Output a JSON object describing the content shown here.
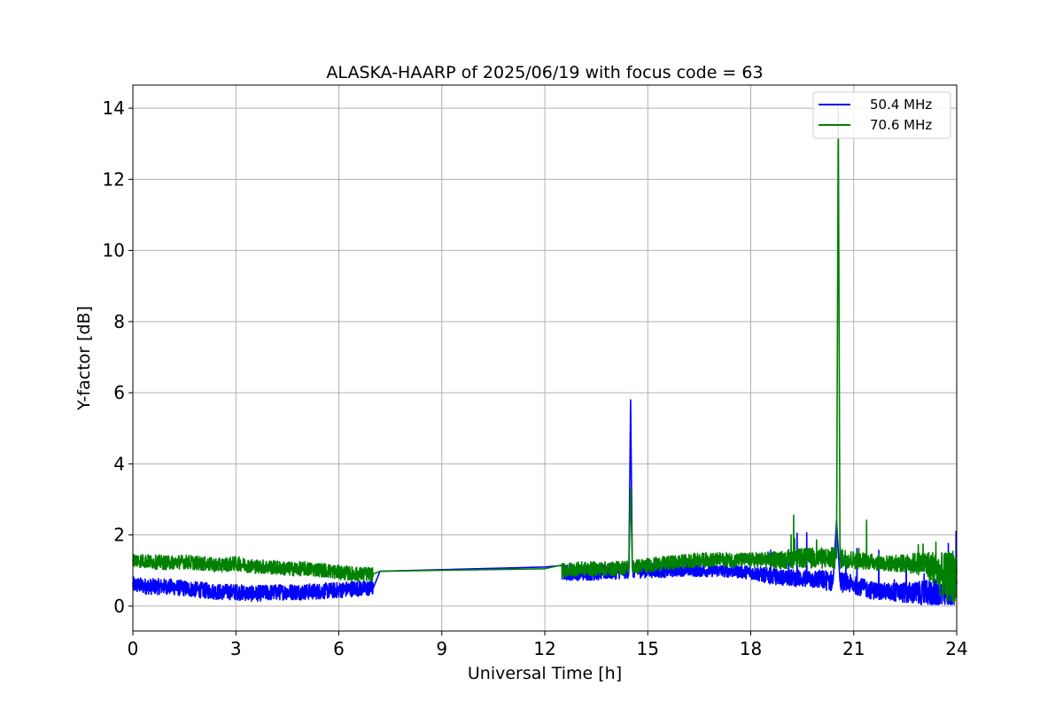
{
  "chart_data": {
    "type": "line",
    "title": "ALASKA-HAARP of 2025/06/19 with focus code = 63",
    "xlabel": "Universal Time [h]",
    "ylabel": "Y-factor [dB]",
    "xlim": [
      0,
      24
    ],
    "ylim": [
      -0.7,
      14.65
    ],
    "xticks": [
      0,
      3,
      6,
      9,
      12,
      15,
      18,
      21,
      24
    ],
    "yticks": [
      0,
      2,
      4,
      6,
      8,
      10,
      12,
      14
    ],
    "grid": true,
    "legend_position": "top-right",
    "series": [
      {
        "name": "50.4 MHz",
        "color": "#0000ff",
        "x": [
          0,
          0.5,
          1,
          1.5,
          2,
          2.5,
          3,
          3.5,
          4,
          4.5,
          5,
          5.5,
          6,
          6.5,
          7,
          7.2,
          12,
          12.5,
          13,
          13.5,
          14,
          14.45,
          14.5,
          14.55,
          15,
          15.5,
          16,
          16.5,
          17,
          17.5,
          18,
          18.5,
          19,
          19.5,
          20,
          20.4,
          20.5,
          20.6,
          21,
          21.5,
          22,
          22.5,
          23,
          23.3,
          23.5,
          23.7,
          24
        ],
        "y": [
          0.6,
          0.55,
          0.55,
          0.5,
          0.45,
          0.4,
          0.4,
          0.35,
          0.38,
          0.4,
          0.4,
          0.42,
          0.45,
          0.5,
          0.5,
          0.98,
          1.1,
          0.95,
          0.95,
          0.95,
          0.98,
          1.0,
          5.8,
          1.0,
          1.0,
          1.0,
          1.02,
          1.0,
          1.0,
          0.98,
          0.95,
          0.85,
          0.8,
          0.78,
          0.75,
          0.7,
          2.4,
          0.7,
          0.6,
          0.45,
          0.4,
          0.38,
          0.35,
          0.35,
          0.3,
          0.5,
          0.6
        ],
        "noise": [
          0.45,
          0.45,
          0.45,
          0.45,
          0.45,
          0.45,
          0.45,
          0.45,
          0.45,
          0.45,
          0.45,
          0.45,
          0.45,
          0.45,
          0.45,
          0,
          0,
          0.45,
          0.45,
          0.45,
          0.45,
          0.45,
          0,
          0.45,
          0.4,
          0.4,
          0.35,
          0.35,
          0.35,
          0.35,
          0.4,
          0.45,
          0.45,
          0.5,
          0.55,
          0.6,
          0,
          0.6,
          0.5,
          0.5,
          0.5,
          0.6,
          0.7,
          0.8,
          1.0,
          1.4,
          1.6
        ]
      },
      {
        "name": "70.6 MHz",
        "color": "#008000",
        "x": [
          0,
          0.5,
          1,
          1.5,
          2,
          2.5,
          3,
          3.5,
          4,
          4.5,
          5,
          5.5,
          6,
          6.5,
          7,
          7.2,
          12,
          12.5,
          13,
          13.5,
          14,
          14.45,
          14.5,
          14.55,
          15,
          15.5,
          16,
          16.5,
          17,
          17.5,
          18,
          18.5,
          19,
          19.5,
          20,
          20.5,
          20.55,
          20.6,
          21,
          21.5,
          22,
          22.5,
          23,
          23.3,
          23.5,
          23.7,
          24
        ],
        "y": [
          1.3,
          1.25,
          1.22,
          1.25,
          1.2,
          1.15,
          1.2,
          1.12,
          1.1,
          1.05,
          1.05,
          1.02,
          0.95,
          0.9,
          0.9,
          0.98,
          1.05,
          1.0,
          1.05,
          1.05,
          1.05,
          1.1,
          3.3,
          1.1,
          1.15,
          1.2,
          1.25,
          1.3,
          1.3,
          1.3,
          1.3,
          1.3,
          1.3,
          1.35,
          1.35,
          1.35,
          14.0,
          1.35,
          1.3,
          1.25,
          1.2,
          1.2,
          1.2,
          1.1,
          0.9,
          0.8,
          0.9
        ],
        "noise": [
          0.4,
          0.4,
          0.4,
          0.4,
          0.4,
          0.4,
          0.4,
          0.4,
          0.4,
          0.4,
          0.4,
          0.4,
          0.4,
          0.4,
          0.4,
          0,
          0,
          0.4,
          0.4,
          0.4,
          0.4,
          0.4,
          0,
          0.4,
          0.4,
          0.4,
          0.4,
          0.4,
          0.4,
          0.4,
          0.4,
          0.45,
          0.5,
          0.55,
          0.6,
          0.6,
          0,
          0.6,
          0.5,
          0.45,
          0.45,
          0.5,
          0.7,
          0.9,
          1.2,
          1.4,
          1.6
        ]
      }
    ]
  }
}
